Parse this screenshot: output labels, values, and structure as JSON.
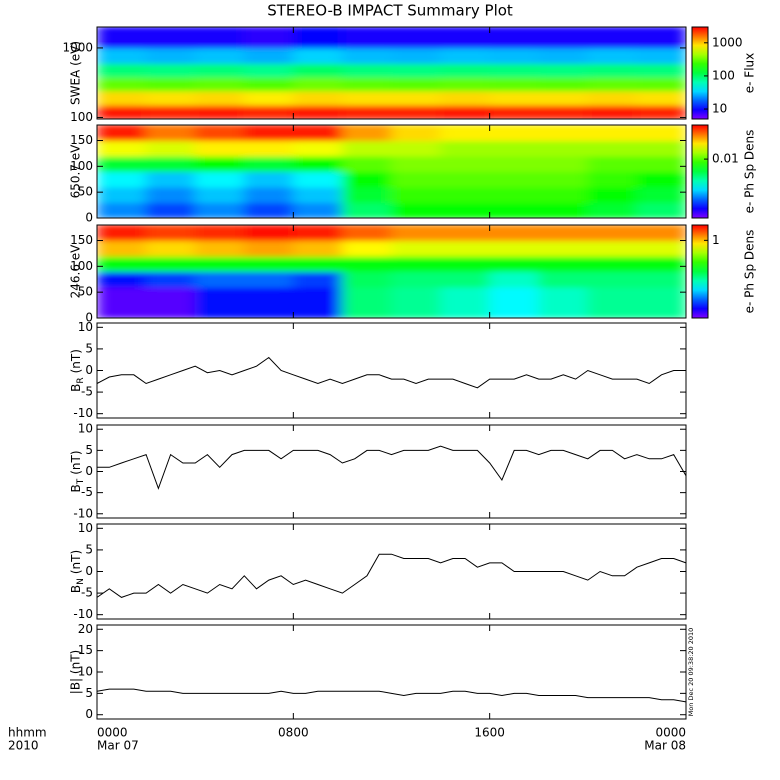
{
  "title": "STEREO-B IMPACT Summary Plot",
  "timestamp": "Mon Dec 20 09:38:20 2010",
  "x_axis": {
    "xlim": [
      0,
      24
    ],
    "xticks": [
      {
        "value": 0,
        "label": "0000"
      },
      {
        "value": 8,
        "label": "0800"
      },
      {
        "value": 16,
        "label": "1600"
      },
      {
        "value": 24,
        "label": "0000"
      }
    ],
    "date_labels": [
      {
        "value": 0,
        "label": "Mar 07"
      },
      {
        "value": 24,
        "label": "Mar 08"
      }
    ],
    "row_labels": [
      "hhmm",
      "2010"
    ]
  },
  "chart_data": [
    {
      "type": "heatmap",
      "ylabel": "SWEA (eV)",
      "log": true,
      "ylim": [
        95,
        2000
      ],
      "yticks": [
        100,
        1000
      ],
      "colormap": "rainbow",
      "clabel": "e- Flux",
      "clim": [
        5,
        3000
      ],
      "cticks": [
        10,
        100,
        1000
      ],
      "x_edges": [
        0,
        2,
        4,
        6,
        8,
        10,
        12,
        14,
        16,
        18,
        20,
        22,
        24
      ],
      "y_edges": [
        95,
        150,
        240,
        380,
        600,
        1000,
        2000
      ],
      "z": [
        [
          2600,
          2500,
          2600,
          2400,
          2600,
          2500,
          2500,
          2600,
          2500,
          2500,
          2600,
          2500
        ],
        [
          900,
          850,
          900,
          800,
          900,
          850,
          850,
          900,
          850,
          850,
          900,
          850
        ],
        [
          300,
          280,
          300,
          270,
          320,
          290,
          280,
          300,
          290,
          280,
          300,
          290
        ],
        [
          90,
          85,
          90,
          80,
          100,
          88,
          85,
          90,
          88,
          85,
          90,
          88
        ],
        [
          30,
          28,
          30,
          27,
          33,
          29,
          28,
          30,
          29,
          28,
          30,
          29
        ],
        [
          9,
          9,
          9,
          8,
          10,
          9,
          9,
          9,
          9,
          9,
          9,
          9
        ]
      ]
    },
    {
      "type": "heatmap",
      "ylabel": "650.7 eV",
      "log": false,
      "ylim": [
        0,
        180
      ],
      "yticks": [
        0,
        50,
        100,
        150
      ],
      "colormap": "rainbow",
      "clabel": "e- Ph Sp Dens",
      "clim": [
        0.0015,
        0.03
      ],
      "cticks": [
        0.01
      ],
      "x_edges": [
        0,
        2,
        4,
        6,
        8,
        10,
        12,
        14,
        16,
        18,
        20,
        22,
        24
      ],
      "y_edges": [
        0,
        30,
        60,
        90,
        120,
        150,
        180
      ],
      "z": [
        [
          0.003,
          0.0025,
          0.003,
          0.0025,
          0.003,
          0.006,
          0.008,
          0.008,
          0.008,
          0.008,
          0.007,
          0.006
        ],
        [
          0.0035,
          0.003,
          0.0035,
          0.003,
          0.0035,
          0.007,
          0.009,
          0.009,
          0.009,
          0.009,
          0.008,
          0.007
        ],
        [
          0.004,
          0.0035,
          0.004,
          0.0035,
          0.004,
          0.008,
          0.01,
          0.01,
          0.01,
          0.01,
          0.009,
          0.008
        ],
        [
          0.007,
          0.007,
          0.008,
          0.007,
          0.008,
          0.01,
          0.011,
          0.011,
          0.011,
          0.011,
          0.01,
          0.01
        ],
        [
          0.015,
          0.014,
          0.016,
          0.016,
          0.015,
          0.013,
          0.013,
          0.012,
          0.012,
          0.012,
          0.012,
          0.012
        ],
        [
          0.028,
          0.022,
          0.025,
          0.028,
          0.028,
          0.02,
          0.017,
          0.016,
          0.016,
          0.016,
          0.016,
          0.016
        ]
      ]
    },
    {
      "type": "heatmap",
      "ylabel": "246.6 eV",
      "log": false,
      "ylim": [
        0,
        180
      ],
      "yticks": [
        0,
        50,
        100,
        150
      ],
      "colormap": "rainbow",
      "clabel": "e- Ph Sp Dens",
      "clim": [
        0.03,
        2
      ],
      "cticks": [
        1
      ],
      "x_edges": [
        0,
        2,
        4,
        6,
        8,
        10,
        12,
        14,
        16,
        18,
        20,
        22,
        24
      ],
      "y_edges": [
        0,
        30,
        60,
        90,
        120,
        150,
        180
      ],
      "z": [
        [
          0.035,
          0.035,
          0.05,
          0.05,
          0.05,
          0.2,
          0.18,
          0.15,
          0.12,
          0.15,
          0.18,
          0.18
        ],
        [
          0.035,
          0.035,
          0.05,
          0.05,
          0.05,
          0.2,
          0.18,
          0.15,
          0.12,
          0.15,
          0.18,
          0.18
        ],
        [
          0.05,
          0.06,
          0.07,
          0.07,
          0.06,
          0.22,
          0.2,
          0.2,
          0.15,
          0.2,
          0.2,
          0.2
        ],
        [
          0.3,
          0.3,
          0.3,
          0.3,
          0.3,
          0.3,
          0.3,
          0.3,
          0.3,
          0.3,
          0.3,
          0.3
        ],
        [
          1.0,
          0.9,
          1.0,
          1.1,
          1.0,
          0.8,
          0.7,
          0.7,
          0.7,
          0.7,
          0.7,
          0.7
        ],
        [
          1.8,
          1.6,
          1.7,
          1.9,
          1.8,
          1.4,
          1.2,
          1.2,
          1.2,
          1.2,
          1.2,
          1.2
        ]
      ]
    },
    {
      "type": "line",
      "ylabel": {
        "main": "B",
        "sub": "R",
        "rest": "(nT)"
      },
      "ylim": [
        -11,
        11
      ],
      "yticks": [
        -10,
        -5,
        0,
        5,
        10
      ],
      "color": "#000000",
      "x": [
        0,
        0.5,
        1,
        1.5,
        2,
        2.5,
        3,
        3.5,
        4,
        4.5,
        5,
        5.5,
        6,
        6.5,
        7,
        7.5,
        8,
        8.5,
        9,
        9.5,
        10,
        10.5,
        11,
        11.5,
        12,
        12.5,
        13,
        13.5,
        14,
        14.5,
        15,
        15.5,
        16,
        16.5,
        17,
        17.5,
        18,
        18.5,
        19,
        19.5,
        20,
        20.5,
        21,
        21.5,
        22,
        22.5,
        23,
        23.5,
        24
      ],
      "values": [
        -3,
        -1.5,
        -1,
        -1,
        -3,
        -2,
        -1,
        0,
        1,
        -0.5,
        0,
        -1,
        0,
        1,
        3,
        0,
        -1,
        -2,
        -3,
        -2,
        -3,
        -2,
        -1,
        -1,
        -2,
        -2,
        -3,
        -2,
        -2,
        -2,
        -3,
        -4,
        -2,
        -2,
        -2,
        -1,
        -2,
        -2,
        -1,
        -2,
        0,
        -1,
        -2,
        -2,
        -2,
        -3,
        -1,
        0,
        0
      ]
    },
    {
      "type": "line",
      "ylabel": {
        "main": "B",
        "sub": "T",
        "rest": "(nT)"
      },
      "ylim": [
        -11,
        11
      ],
      "yticks": [
        -10,
        -5,
        0,
        5,
        10
      ],
      "color": "#000000",
      "x": [
        0,
        0.5,
        1,
        1.5,
        2,
        2.5,
        3,
        3.5,
        4,
        4.5,
        5,
        5.5,
        6,
        6.5,
        7,
        7.5,
        8,
        8.5,
        9,
        9.5,
        10,
        10.5,
        11,
        11.5,
        12,
        12.5,
        13,
        13.5,
        14,
        14.5,
        15,
        15.5,
        16,
        16.5,
        17,
        17.5,
        18,
        18.5,
        19,
        19.5,
        20,
        20.5,
        21,
        21.5,
        22,
        22.5,
        23,
        23.5,
        24
      ],
      "values": [
        1,
        1,
        2,
        3,
        4,
        -4,
        4,
        2,
        2,
        4,
        1,
        4,
        5,
        5,
        5,
        3,
        5,
        5,
        5,
        4,
        2,
        3,
        5,
        5,
        4,
        5,
        5,
        5,
        6,
        5,
        5,
        5,
        2,
        -2,
        5,
        5,
        4,
        5,
        5,
        4,
        3,
        5,
        5,
        3,
        4,
        3,
        3,
        4,
        -1
      ]
    },
    {
      "type": "line",
      "ylabel": {
        "main": "B",
        "sub": "N",
        "rest": "(nT)"
      },
      "ylim": [
        -11,
        11
      ],
      "yticks": [
        -10,
        -5,
        0,
        5,
        10
      ],
      "color": "#000000",
      "x": [
        0,
        0.5,
        1,
        1.5,
        2,
        2.5,
        3,
        3.5,
        4,
        4.5,
        5,
        5.5,
        6,
        6.5,
        7,
        7.5,
        8,
        8.5,
        9,
        9.5,
        10,
        10.5,
        11,
        11.5,
        12,
        12.5,
        13,
        13.5,
        14,
        14.5,
        15,
        15.5,
        16,
        16.5,
        17,
        17.5,
        18,
        18.5,
        19,
        19.5,
        20,
        20.5,
        21,
        21.5,
        22,
        22.5,
        23,
        23.5,
        24
      ],
      "values": [
        -6,
        -4,
        -6,
        -5,
        -5,
        -3,
        -5,
        -3,
        -4,
        -5,
        -3,
        -4,
        -1,
        -4,
        -2,
        -1,
        -3,
        -2,
        -3,
        -4,
        -5,
        -3,
        -1,
        4,
        4,
        3,
        3,
        3,
        2,
        3,
        3,
        1,
        2,
        2,
        0,
        0,
        0,
        0,
        0,
        -1,
        -2,
        0,
        -1,
        -1,
        1,
        2,
        3,
        3,
        2
      ]
    },
    {
      "type": "line",
      "ylabel": "|B| (nT)",
      "ylim": [
        -1,
        21
      ],
      "yticks": [
        0,
        5,
        10,
        15,
        20
      ],
      "color": "#000000",
      "x": [
        0,
        0.5,
        1,
        1.5,
        2,
        2.5,
        3,
        3.5,
        4,
        4.5,
        5,
        5.5,
        6,
        6.5,
        7,
        7.5,
        8,
        8.5,
        9,
        9.5,
        10,
        10.5,
        11,
        11.5,
        12,
        12.5,
        13,
        13.5,
        14,
        14.5,
        15,
        15.5,
        16,
        16.5,
        17,
        17.5,
        18,
        18.5,
        19,
        19.5,
        20,
        20.5,
        21,
        21.5,
        22,
        22.5,
        23,
        23.5,
        24
      ],
      "values": [
        5.5,
        6,
        6,
        6,
        5.5,
        5.5,
        5.5,
        5,
        5,
        5,
        5,
        5,
        5,
        5,
        5,
        5.5,
        5,
        5,
        5.5,
        5.5,
        5.5,
        5.5,
        5.5,
        5.5,
        5,
        4.5,
        5,
        5,
        5,
        5.5,
        5.5,
        5,
        5,
        4.5,
        5,
        5,
        4.5,
        4.5,
        4.5,
        4.5,
        4,
        4,
        4,
        4,
        4,
        4,
        3.5,
        3.5,
        3
      ]
    }
  ]
}
